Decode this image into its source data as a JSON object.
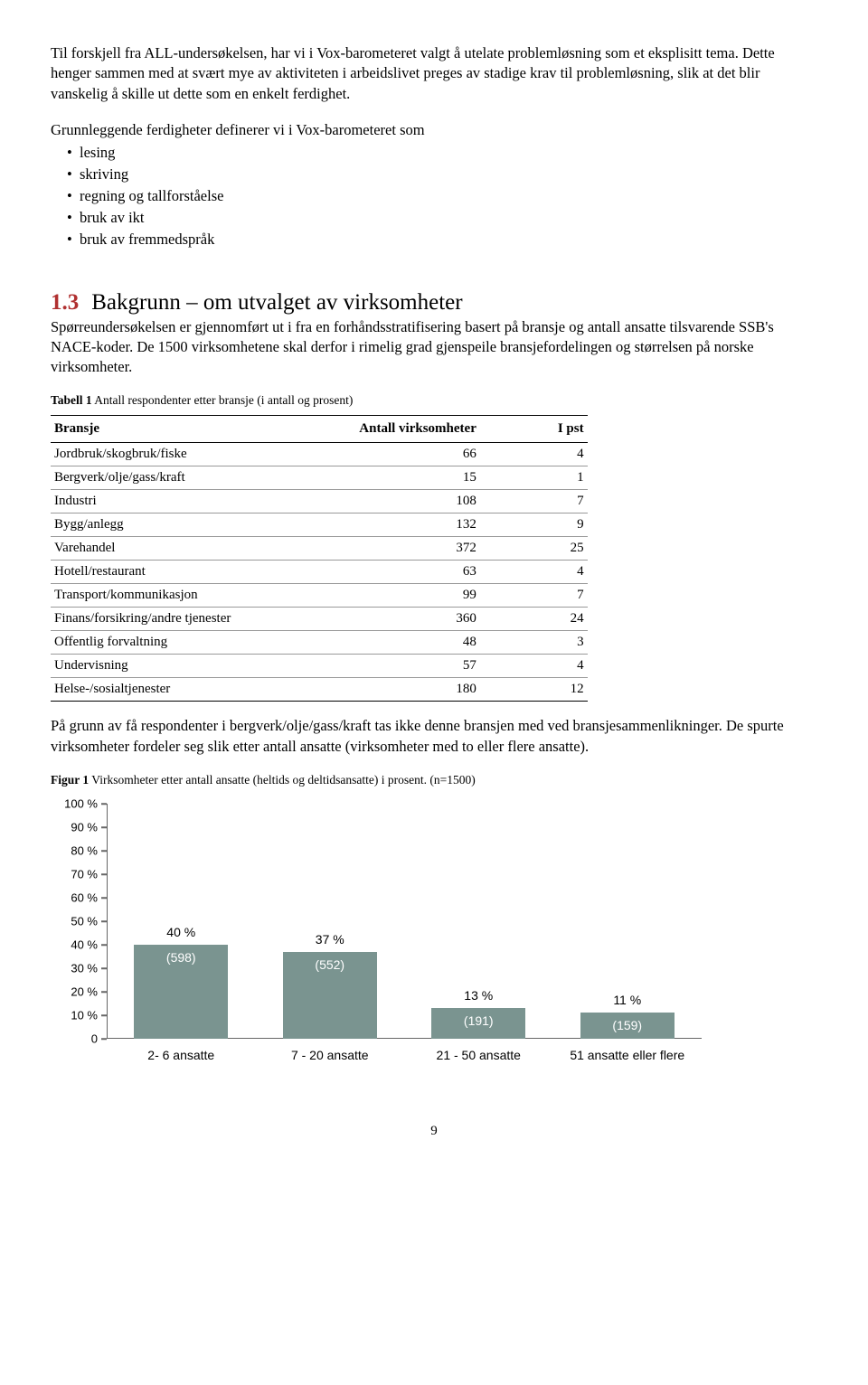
{
  "intro": {
    "p1": "Til forskjell fra ALL-undersøkelsen, har vi i Vox-barometeret valgt å utelate problemløsning som et eksplisitt tema. Dette henger sammen med at svært mye av aktiviteten i arbeidslivet preges av stadige krav til problemløsning, slik at det blir vanskelig å skille ut dette som en enkelt ferdighet.",
    "list_intro": "Grunnleggende ferdigheter definerer vi i Vox-barometeret som",
    "bullets": [
      "lesing",
      "skriving",
      "regning og tallforståelse",
      "bruk av ikt",
      "bruk av fremmedspråk"
    ]
  },
  "section": {
    "num": "1.3",
    "title": "Bakgrunn – om utvalget av virksomheter",
    "body": "Spørreundersøkelsen er gjennomført ut i fra en forhåndsstratifisering basert på bransje og antall ansatte tilsvarende SSB's NACE-koder. De 1500 virksomhetene skal derfor i rimelig grad gjenspeile bransjefordelingen og størrelsen på norske virksomheter."
  },
  "table1": {
    "caption_bold": "Tabell 1",
    "caption_rest": " Antall respondenter etter bransje (i antall og prosent)",
    "headers": [
      "Bransje",
      "Antall virksomheter",
      "I pst"
    ],
    "rows": [
      [
        "Jordbruk/skogbruk/fiske",
        "66",
        "4"
      ],
      [
        "Bergverk/olje/gass/kraft",
        "15",
        "1"
      ],
      [
        "Industri",
        "108",
        "7"
      ],
      [
        "Bygg/anlegg",
        "132",
        "9"
      ],
      [
        "Varehandel",
        "372",
        "25"
      ],
      [
        "Hotell/restaurant",
        "63",
        "4"
      ],
      [
        "Transport/kommunikasjon",
        "99",
        "7"
      ],
      [
        "Finans/forsikring/andre tjenester",
        "360",
        "24"
      ],
      [
        "Offentlig forvaltning",
        "48",
        "3"
      ],
      [
        "Undervisning",
        "57",
        "4"
      ],
      [
        "Helse-/sosialtjenester",
        "180",
        "12"
      ]
    ]
  },
  "post_table_para": "På grunn av få respondenter i bergverk/olje/gass/kraft tas ikke denne bransjen med ved bransjesammenlikninger. De spurte virksomheter fordeler seg slik etter antall ansatte (virksomheter med to eller flere ansatte).",
  "figure1": {
    "caption_bold": "Figur 1",
    "caption_rest": " Virksomheter etter antall ansatte (heltids og deltidsansatte) i prosent. (n=1500)",
    "y_ticks": [
      "0",
      "10 %",
      "20 %",
      "30 %",
      "40 %",
      "50 %",
      "60 %",
      "70 %",
      "80 %",
      "90 %",
      "100 %"
    ],
    "y_max": 100,
    "bar_color": "#7a9490",
    "bars": [
      {
        "pct_label": "40 %",
        "n_label": "(598)",
        "value": 40,
        "x_label": "2- 6 ansatte"
      },
      {
        "pct_label": "37 %",
        "n_label": "(552)",
        "value": 37,
        "x_label": "7 - 20 ansatte"
      },
      {
        "pct_label": "13 %",
        "n_label": "(191)",
        "value": 13,
        "x_label": "21 - 50 ansatte"
      },
      {
        "pct_label": "11 %",
        "n_label": "(159)",
        "value": 11,
        "x_label": "51 ansatte eller flere"
      }
    ]
  },
  "page_number": "9"
}
